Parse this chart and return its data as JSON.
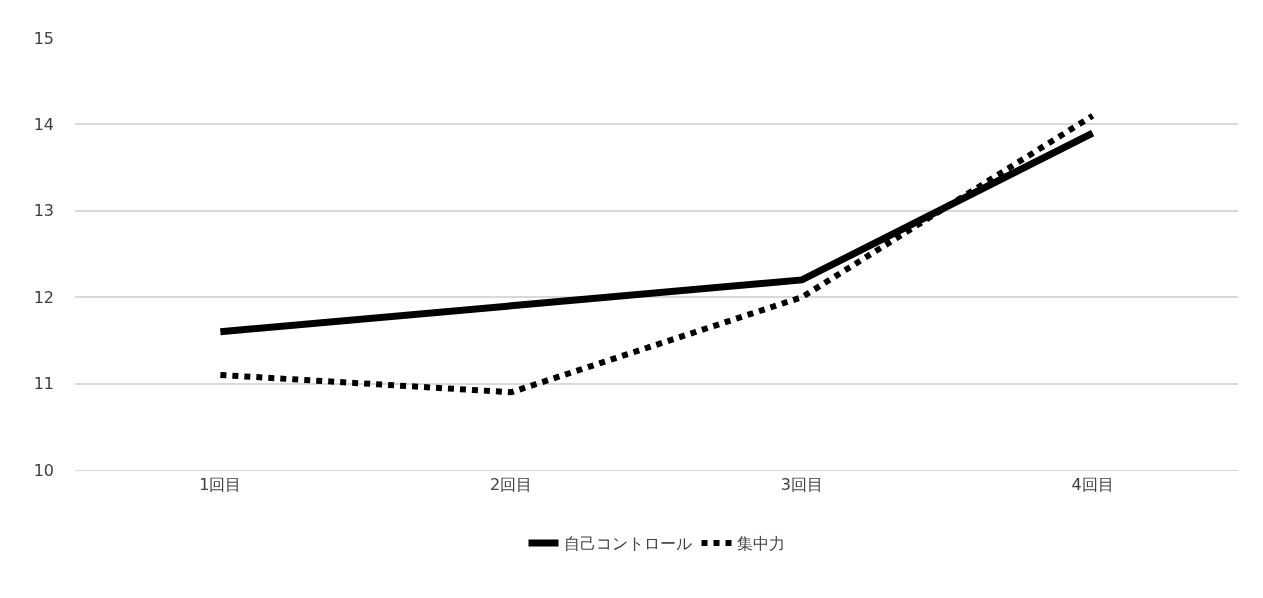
{
  "chart_data": {
    "type": "line",
    "categories": [
      "1回目",
      "2回目",
      "3回目",
      "4回目"
    ],
    "series": [
      {
        "name": "自己コントロール",
        "color": "#000000",
        "line_style": "solid",
        "values": [
          11.6,
          11.9,
          12.2,
          13.9
        ]
      },
      {
        "name": "集中力",
        "color": "#000000",
        "line_style": "dotted",
        "values": [
          11.1,
          10.9,
          12.0,
          14.1
        ]
      }
    ],
    "ylim": [
      10,
      15
    ],
    "yticks": [
      10,
      11,
      12,
      13,
      14,
      15
    ],
    "grid": "y",
    "legend": "bottom",
    "marker": "none"
  }
}
